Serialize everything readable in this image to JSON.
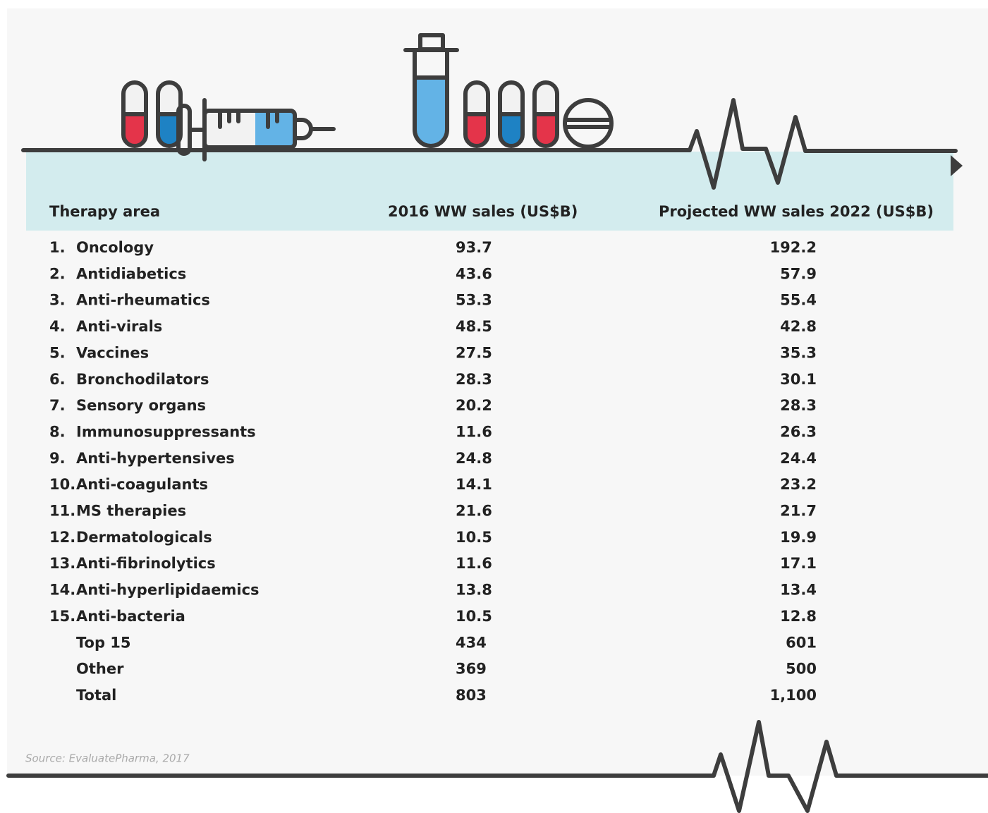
{
  "table": {
    "headers": [
      "Therapy area",
      "2016 WW sales (US$B)",
      "Projected WW sales 2022 (US$B)"
    ],
    "rows": [
      {
        "rank": "1.",
        "area": "Oncology",
        "sales_2016": "93.7",
        "sales_2022": "192.2"
      },
      {
        "rank": "2.",
        "area": "Antidiabetics",
        "sales_2016": "43.6",
        "sales_2022": "57.9"
      },
      {
        "rank": "3.",
        "area": "Anti-rheumatics",
        "sales_2016": "53.3",
        "sales_2022": "55.4"
      },
      {
        "rank": "4.",
        "area": "Anti-virals",
        "sales_2016": "48.5",
        "sales_2022": "42.8"
      },
      {
        "rank": "5.",
        "area": "Vaccines",
        "sales_2016": "27.5",
        "sales_2022": "35.3"
      },
      {
        "rank": "6.",
        "area": "Bronchodilators",
        "sales_2016": "28.3",
        "sales_2022": "30.1"
      },
      {
        "rank": "7.",
        "area": "Sensory organs",
        "sales_2016": "20.2",
        "sales_2022": "28.3"
      },
      {
        "rank": "8.",
        "area": "Immunosuppressants",
        "sales_2016": "11.6",
        "sales_2022": "26.3"
      },
      {
        "rank": "9.",
        "area": "Anti-hypertensives",
        "sales_2016": "24.8",
        "sales_2022": "24.4"
      },
      {
        "rank": "10.",
        "area": "Anti-coagulants",
        "sales_2016": "14.1",
        "sales_2022": "23.2"
      },
      {
        "rank": "11.",
        "area": "MS therapies",
        "sales_2016": "21.6",
        "sales_2022": "21.7"
      },
      {
        "rank": "12.",
        "area": "Dermatologicals",
        "sales_2016": "10.5",
        "sales_2022": "19.9"
      },
      {
        "rank": "13.",
        "area": "Anti-fibrinolytics",
        "sales_2016": "11.6",
        "sales_2022": "17.1"
      },
      {
        "rank": "14.",
        "area": "Anti-hyperlipidaemics",
        "sales_2016": "13.8",
        "sales_2022": "13.4"
      },
      {
        "rank": "15.",
        "area": "Anti-bacteria",
        "sales_2016": "10.5",
        "sales_2022": "12.8"
      },
      {
        "area": "Top 15",
        "sales_2016": "434",
        "sales_2022": "601"
      },
      {
        "area": "Other",
        "sales_2016": "369",
        "sales_2022": "500"
      },
      {
        "area": "Total",
        "sales_2016": "803",
        "sales_2022": "1,100"
      }
    ]
  },
  "source": "Source: EvaluatePharma, 2017"
}
